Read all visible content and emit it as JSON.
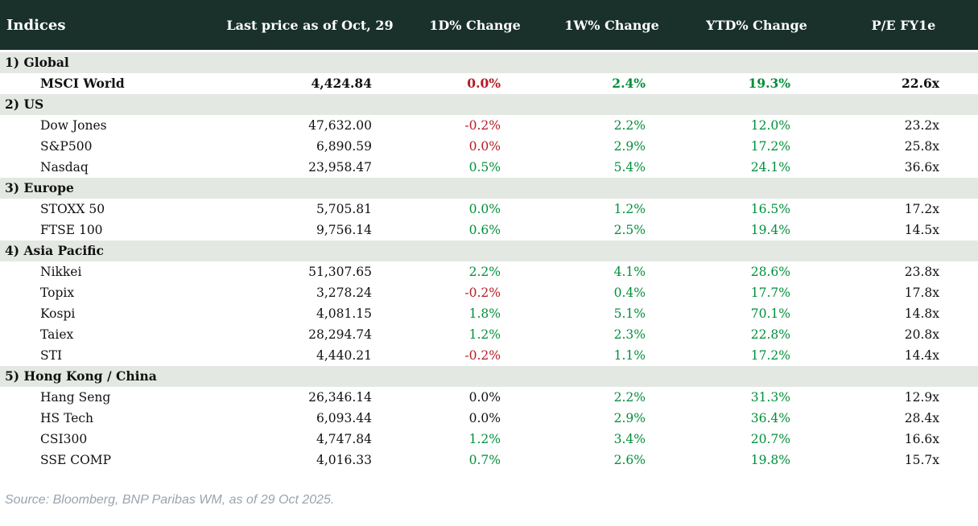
{
  "colors": {
    "header_bg": "#1a312b",
    "header_text": "#ffffff",
    "section_bg": "#e4e8e3",
    "up": "#008f3a",
    "down": "#b51c25",
    "flat": "#111111",
    "text": "#111111",
    "source_text": "#9aa3ae"
  },
  "table": {
    "columns": [
      "Indices",
      "Last price as of Oct, 29",
      "1D% Change",
      "1W% Change",
      "YTD% Change",
      "P/E FY1e"
    ],
    "sections": [
      {
        "title": "1) Global",
        "rows": [
          {
            "name": "MSCI World",
            "price": "4,424.84",
            "d1": "0.0%",
            "d1_tone": "down",
            "w1": "2.4%",
            "w1_tone": "up",
            "ytd": "19.3%",
            "ytd_tone": "up",
            "pe": "22.6x"
          }
        ]
      },
      {
        "title": "2) US",
        "rows": [
          {
            "name": "Dow Jones",
            "price": "47,632.00",
            "d1": "-0.2%",
            "d1_tone": "down",
            "w1": "2.2%",
            "w1_tone": "up",
            "ytd": "12.0%",
            "ytd_tone": "up",
            "pe": "23.2x"
          },
          {
            "name": "S&P500",
            "price": "6,890.59",
            "d1": "0.0%",
            "d1_tone": "down",
            "w1": "2.9%",
            "w1_tone": "up",
            "ytd": "17.2%",
            "ytd_tone": "up",
            "pe": "25.8x"
          },
          {
            "name": "Nasdaq",
            "price": "23,958.47",
            "d1": "0.5%",
            "d1_tone": "up",
            "w1": "5.4%",
            "w1_tone": "up",
            "ytd": "24.1%",
            "ytd_tone": "up",
            "pe": "36.6x"
          }
        ]
      },
      {
        "title": "3) Europe",
        "rows": [
          {
            "name": "STOXX 50",
            "price": "5,705.81",
            "d1": "0.0%",
            "d1_tone": "up",
            "w1": "1.2%",
            "w1_tone": "up",
            "ytd": "16.5%",
            "ytd_tone": "up",
            "pe": "17.2x"
          },
          {
            "name": "FTSE 100",
            "price": "9,756.14",
            "d1": "0.6%",
            "d1_tone": "up",
            "w1": "2.5%",
            "w1_tone": "up",
            "ytd": "19.4%",
            "ytd_tone": "up",
            "pe": "14.5x"
          }
        ]
      },
      {
        "title": "4) Asia Pacific",
        "rows": [
          {
            "name": "Nikkei",
            "price": "51,307.65",
            "d1": "2.2%",
            "d1_tone": "up",
            "w1": "4.1%",
            "w1_tone": "up",
            "ytd": "28.6%",
            "ytd_tone": "up",
            "pe": "23.8x"
          },
          {
            "name": "Topix",
            "price": "3,278.24",
            "d1": "-0.2%",
            "d1_tone": "down",
            "w1": "0.4%",
            "w1_tone": "up",
            "ytd": "17.7%",
            "ytd_tone": "up",
            "pe": "17.8x"
          },
          {
            "name": "Kospi",
            "price": "4,081.15",
            "d1": "1.8%",
            "d1_tone": "up",
            "w1": "5.1%",
            "w1_tone": "up",
            "ytd": "70.1%",
            "ytd_tone": "up",
            "pe": "14.8x"
          },
          {
            "name": "Taiex",
            "price": "28,294.74",
            "d1": "1.2%",
            "d1_tone": "up",
            "w1": "2.3%",
            "w1_tone": "up",
            "ytd": "22.8%",
            "ytd_tone": "up",
            "pe": "20.8x"
          },
          {
            "name": "STI",
            "price": "4,440.21",
            "d1": "-0.2%",
            "d1_tone": "down",
            "w1": "1.1%",
            "w1_tone": "up",
            "ytd": "17.2%",
            "ytd_tone": "up",
            "pe": "14.4x"
          }
        ]
      },
      {
        "title": "5) Hong Kong / China",
        "rows": [
          {
            "name": "Hang Seng",
            "price": "26,346.14",
            "d1": "0.0%",
            "d1_tone": "flat",
            "w1": "2.2%",
            "w1_tone": "up",
            "ytd": "31.3%",
            "ytd_tone": "up",
            "pe": "12.9x"
          },
          {
            "name": "HS Tech",
            "price": "6,093.44",
            "d1": "0.0%",
            "d1_tone": "flat",
            "w1": "2.9%",
            "w1_tone": "up",
            "ytd": "36.4%",
            "ytd_tone": "up",
            "pe": "28.4x"
          },
          {
            "name": "CSI300",
            "price": "4,747.84",
            "d1": "1.2%",
            "d1_tone": "up",
            "w1": "3.4%",
            "w1_tone": "up",
            "ytd": "20.7%",
            "ytd_tone": "up",
            "pe": "16.6x"
          },
          {
            "name": "SSE COMP",
            "price": "4,016.33",
            "d1": "0.7%",
            "d1_tone": "up",
            "w1": "2.6%",
            "w1_tone": "up",
            "ytd": "19.8%",
            "ytd_tone": "up",
            "pe": "15.7x"
          }
        ]
      }
    ]
  },
  "footer": {
    "source": "Source: Bloomberg, BNP Paribas WM, as of 29 Oct 2025."
  },
  "chart_data": {
    "type": "table",
    "title": "Indices",
    "columns": [
      "Indices",
      "Last price as of Oct, 29",
      "1D% Change",
      "1W% Change",
      "YTD% Change",
      "P/E FY1e"
    ],
    "rows": [
      {
        "section": "Global",
        "index": "MSCI World",
        "last_price": 4424.84,
        "chg_1d_pct": 0.0,
        "chg_1w_pct": 2.4,
        "chg_ytd_pct": 19.3,
        "pe_fy1e": 22.6
      },
      {
        "section": "US",
        "index": "Dow Jones",
        "last_price": 47632.0,
        "chg_1d_pct": -0.2,
        "chg_1w_pct": 2.2,
        "chg_ytd_pct": 12.0,
        "pe_fy1e": 23.2
      },
      {
        "section": "US",
        "index": "S&P500",
        "last_price": 6890.59,
        "chg_1d_pct": 0.0,
        "chg_1w_pct": 2.9,
        "chg_ytd_pct": 17.2,
        "pe_fy1e": 25.8
      },
      {
        "section": "US",
        "index": "Nasdaq",
        "last_price": 23958.47,
        "chg_1d_pct": 0.5,
        "chg_1w_pct": 5.4,
        "chg_ytd_pct": 24.1,
        "pe_fy1e": 36.6
      },
      {
        "section": "Europe",
        "index": "STOXX 50",
        "last_price": 5705.81,
        "chg_1d_pct": 0.0,
        "chg_1w_pct": 1.2,
        "chg_ytd_pct": 16.5,
        "pe_fy1e": 17.2
      },
      {
        "section": "Europe",
        "index": "FTSE 100",
        "last_price": 9756.14,
        "chg_1d_pct": 0.6,
        "chg_1w_pct": 2.5,
        "chg_ytd_pct": 19.4,
        "pe_fy1e": 14.5
      },
      {
        "section": "Asia Pacific",
        "index": "Nikkei",
        "last_price": 51307.65,
        "chg_1d_pct": 2.2,
        "chg_1w_pct": 4.1,
        "chg_ytd_pct": 28.6,
        "pe_fy1e": 23.8
      },
      {
        "section": "Asia Pacific",
        "index": "Topix",
        "last_price": 3278.24,
        "chg_1d_pct": -0.2,
        "chg_1w_pct": 0.4,
        "chg_ytd_pct": 17.7,
        "pe_fy1e": 17.8
      },
      {
        "section": "Asia Pacific",
        "index": "Kospi",
        "last_price": 4081.15,
        "chg_1d_pct": 1.8,
        "chg_1w_pct": 5.1,
        "chg_ytd_pct": 70.1,
        "pe_fy1e": 14.8
      },
      {
        "section": "Asia Pacific",
        "index": "Taiex",
        "last_price": 28294.74,
        "chg_1d_pct": 1.2,
        "chg_1w_pct": 2.3,
        "chg_ytd_pct": 22.8,
        "pe_fy1e": 20.8
      },
      {
        "section": "Asia Pacific",
        "index": "STI",
        "last_price": 4440.21,
        "chg_1d_pct": -0.2,
        "chg_1w_pct": 1.1,
        "chg_ytd_pct": 17.2,
        "pe_fy1e": 14.4
      },
      {
        "section": "Hong Kong / China",
        "index": "Hang Seng",
        "last_price": 26346.14,
        "chg_1d_pct": 0.0,
        "chg_1w_pct": 2.2,
        "chg_ytd_pct": 31.3,
        "pe_fy1e": 12.9
      },
      {
        "section": "Hong Kong / China",
        "index": "HS Tech",
        "last_price": 6093.44,
        "chg_1d_pct": 0.0,
        "chg_1w_pct": 2.9,
        "chg_ytd_pct": 36.4,
        "pe_fy1e": 28.4
      },
      {
        "section": "Hong Kong / China",
        "index": "CSI300",
        "last_price": 4747.84,
        "chg_1d_pct": 1.2,
        "chg_1w_pct": 3.4,
        "chg_ytd_pct": 20.7,
        "pe_fy1e": 16.6
      },
      {
        "section": "Hong Kong / China",
        "index": "SSE COMP",
        "last_price": 4016.33,
        "chg_1d_pct": 0.7,
        "chg_1w_pct": 2.6,
        "chg_ytd_pct": 19.8,
        "pe_fy1e": 15.7
      }
    ]
  }
}
